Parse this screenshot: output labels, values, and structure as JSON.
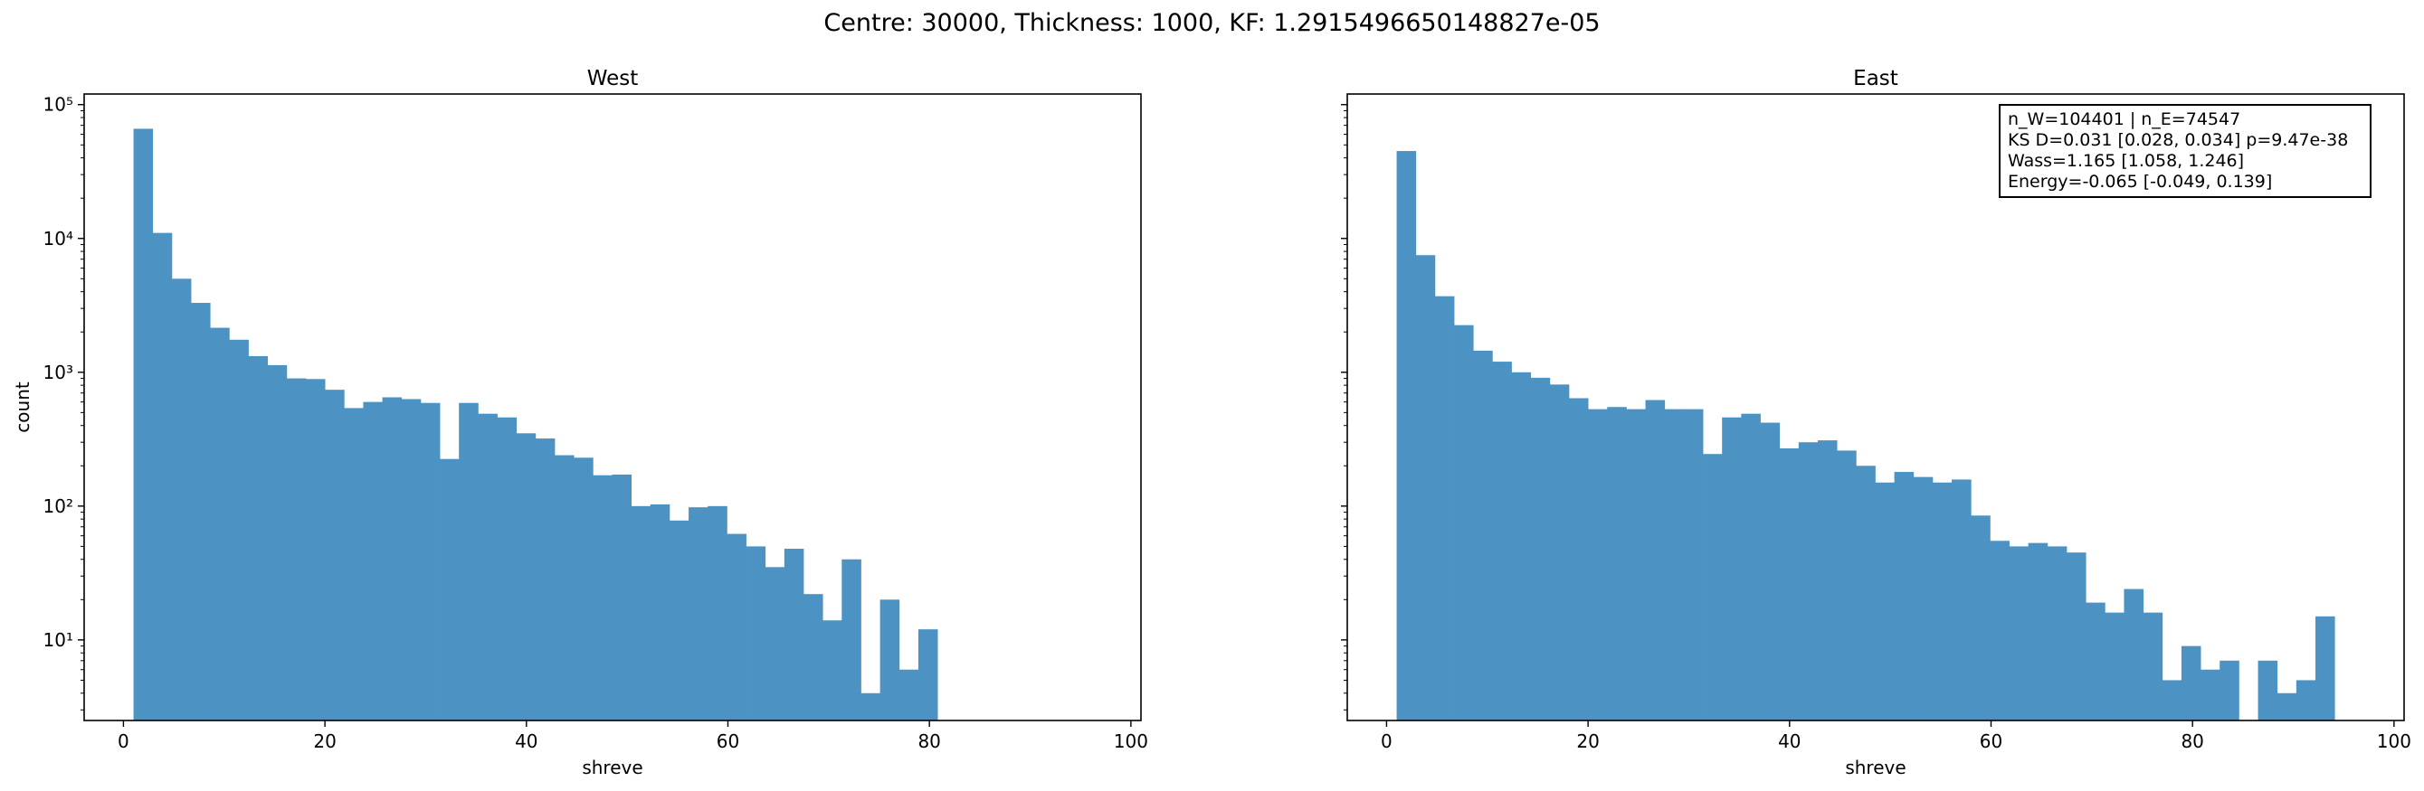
{
  "suptitle": "Centre: 30000, Thickness: 1000, KF: 1.2915496650148827e-05",
  "stats": {
    "line1": "n_W=104401 | n_E=74547",
    "line2": "KS D=0.031 [0.028, 0.034]  p=9.47e-38",
    "line3": "Wass=1.165 [1.058, 1.246]",
    "line4": "Energy=-0.065 [-0.049, 0.139]"
  },
  "colors": {
    "bar": "#4c93c4"
  },
  "chart_data": [
    {
      "type": "bar",
      "title": "West",
      "xlabel": "shreve",
      "ylabel": "count",
      "yscale": "log",
      "xlim": [
        -3.9,
        101
      ],
      "ylim": [
        2.5,
        120000
      ],
      "xticks": [
        0,
        20,
        40,
        60,
        80,
        100
      ],
      "yticks": [
        {
          "value": 10,
          "label": "10¹"
        },
        {
          "value": 100,
          "label": "10²"
        },
        {
          "value": 1000,
          "label": "10³"
        },
        {
          "value": 10000,
          "label": "10⁴"
        },
        {
          "value": 100000,
          "label": "10⁵"
        }
      ],
      "bin_start": 1,
      "bin_width": 1.9,
      "values": [
        66000,
        11000,
        5000,
        3300,
        2150,
        1750,
        1320,
        1130,
        900,
        890,
        740,
        540,
        600,
        650,
        630,
        590,
        225,
        590,
        490,
        460,
        350,
        320,
        240,
        230,
        170,
        172,
        100,
        103,
        78,
        98,
        100,
        62,
        50,
        35,
        48,
        22,
        14,
        40,
        4,
        20,
        6,
        12
      ]
    },
    {
      "type": "bar",
      "title": "East",
      "xlabel": "shreve",
      "ylabel": "",
      "yscale": "log",
      "xlim": [
        -3.9,
        101
      ],
      "ylim": [
        2.5,
        120000
      ],
      "xticks": [
        0,
        20,
        40,
        60,
        80,
        100
      ],
      "yticks": [],
      "bin_start": 1,
      "bin_width": 1.9,
      "values": [
        45000,
        7500,
        3700,
        2250,
        1450,
        1200,
        1000,
        910,
        810,
        640,
        530,
        550,
        530,
        620,
        530,
        530,
        245,
        460,
        490,
        420,
        270,
        300,
        310,
        260,
        200,
        150,
        180,
        165,
        150,
        158,
        85,
        55,
        50,
        53,
        50,
        45,
        19,
        16,
        24,
        16,
        5,
        9,
        6,
        7,
        0,
        7,
        4,
        5,
        15
      ]
    }
  ]
}
